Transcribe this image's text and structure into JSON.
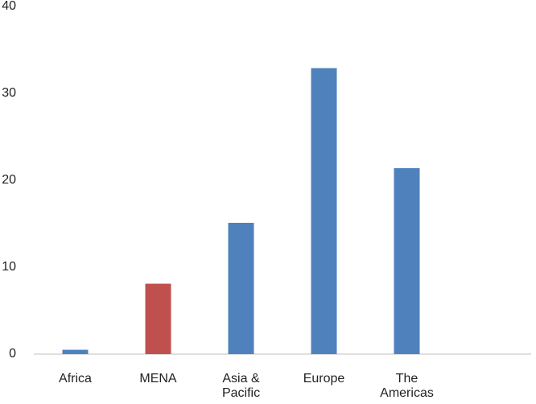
{
  "chart_data": {
    "type": "bar",
    "categories": [
      "Africa",
      "MENA",
      "Asia & Pacific",
      "Europe",
      "The Americas",
      null
    ],
    "values": [
      0.5,
      8.1,
      15.1,
      32.9,
      21.4,
      null
    ],
    "colors": [
      "#4f81bd",
      "#c0504d",
      "#4f81bd",
      "#4f81bd",
      "#4f81bd",
      "#4f81bd"
    ],
    "ylim": [
      0,
      40
    ],
    "yticks": [
      0,
      10,
      20,
      30,
      40
    ],
    "grid": false
  }
}
